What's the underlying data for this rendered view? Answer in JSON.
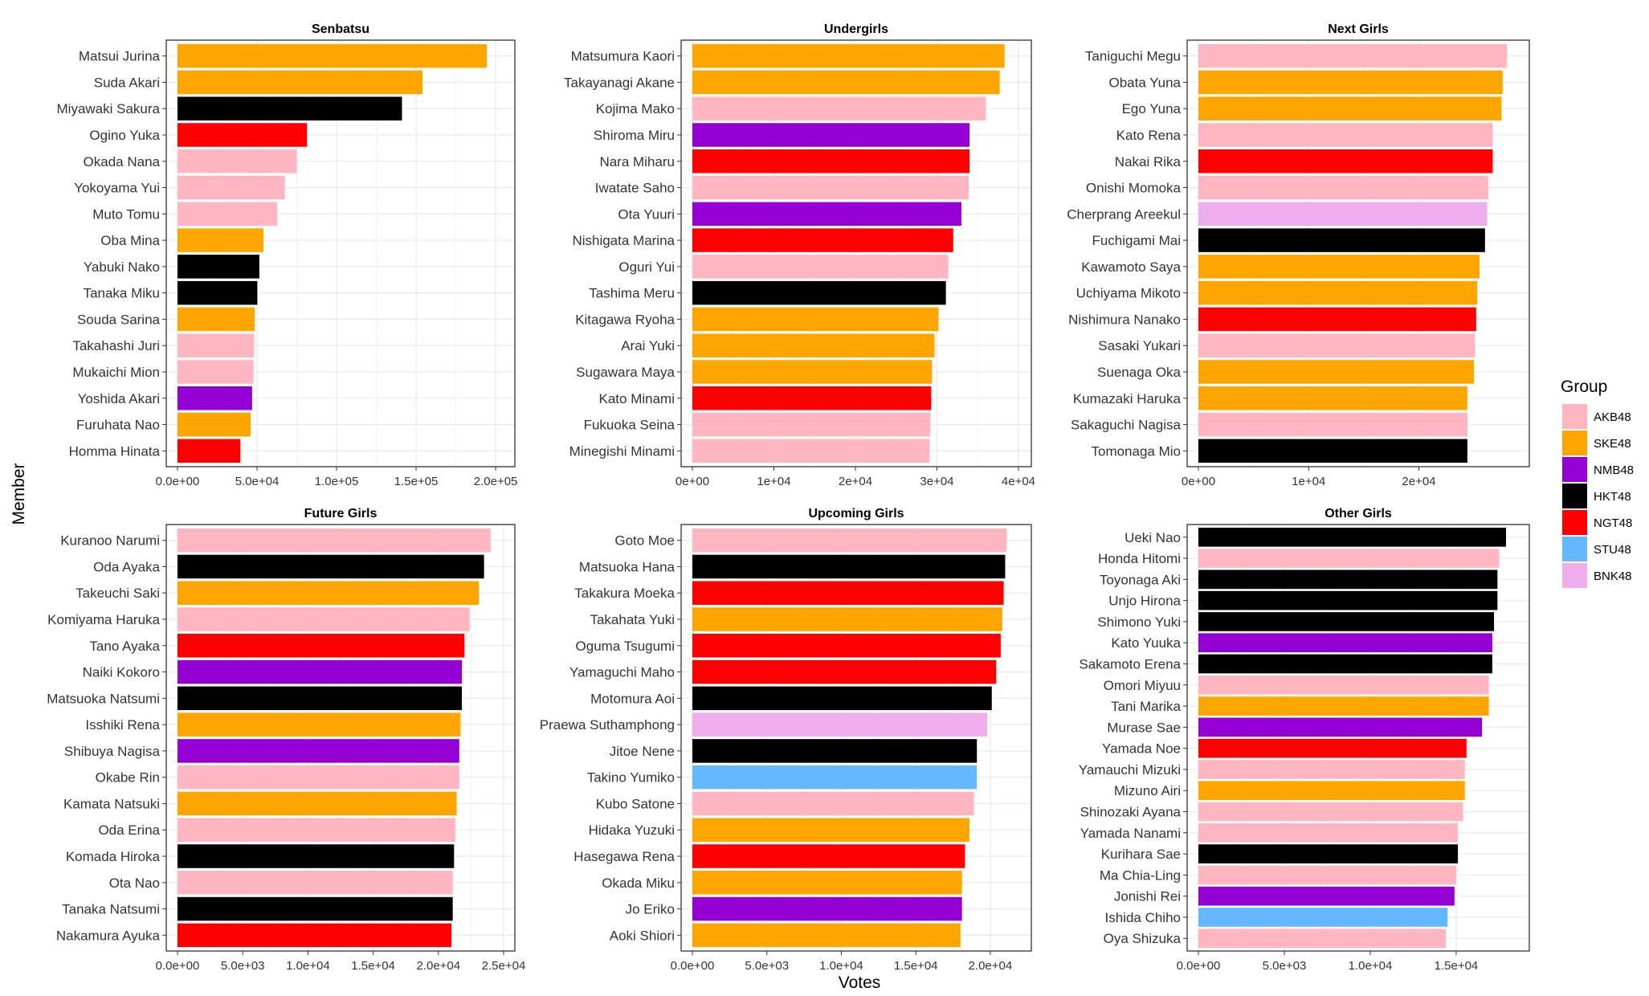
{
  "chart_data": {
    "type": "bar",
    "orientation": "horizontal",
    "xlabel": "Votes",
    "ylabel": "Member",
    "legend": {
      "title": "Group",
      "position": "right",
      "entries": [
        {
          "name": "AKB48",
          "color": "#FFB6C1"
        },
        {
          "name": "SKE48",
          "color": "#FFA500"
        },
        {
          "name": "NMB48",
          "color": "#9400D3"
        },
        {
          "name": "HKT48",
          "color": "#000000"
        },
        {
          "name": "NGT48",
          "color": "#FF0000"
        },
        {
          "name": "STU48",
          "color": "#63B8FF"
        },
        {
          "name": "BNK48",
          "color": "#EEAEEE"
        }
      ]
    },
    "panels": [
      {
        "title": "Senbatsu",
        "xlim": [
          0,
          205000
        ],
        "ticks": [
          0,
          50000,
          100000,
          150000,
          200000
        ],
        "tick_labels": [
          "0.0e+00",
          "5.0e+04",
          "1.0e+05",
          "1.5e+05",
          "2.0e+05"
        ],
        "bars": [
          {
            "member": "Matsui Jurina",
            "group": "SKE48",
            "votes": 194453
          },
          {
            "member": "Suda Akari",
            "group": "SKE48",
            "votes": 154011
          },
          {
            "member": "Miyawaki Sakura",
            "group": "HKT48",
            "votes": 141106
          },
          {
            "member": "Ogino Yuka",
            "group": "NGT48",
            "votes": 81388
          },
          {
            "member": "Okada Nana",
            "group": "AKB48",
            "votes": 75012
          },
          {
            "member": "Yokoyama Yui",
            "group": "AKB48",
            "votes": 67458
          },
          {
            "member": "Muto Tomu",
            "group": "AKB48",
            "votes": 62664
          },
          {
            "member": "Oba Mina",
            "group": "SKE48",
            "votes": 54000
          },
          {
            "member": "Yabuki Nako",
            "group": "HKT48",
            "votes": 51450
          },
          {
            "member": "Tanaka Miku",
            "group": "HKT48",
            "votes": 50174
          },
          {
            "member": "Souda Sarina",
            "group": "SKE48",
            "votes": 48500
          },
          {
            "member": "Takahashi Juri",
            "group": "AKB48",
            "votes": 48200
          },
          {
            "member": "Mukaichi Mion",
            "group": "AKB48",
            "votes": 47800
          },
          {
            "member": "Yoshida Akari",
            "group": "NMB48",
            "votes": 46900
          },
          {
            "member": "Furuhata Nao",
            "group": "SKE48",
            "votes": 46000
          },
          {
            "member": "Homma Hinata",
            "group": "NGT48",
            "votes": 39500
          }
        ]
      },
      {
        "title": "Undergirls",
        "xlim": [
          0,
          40200
        ],
        "ticks": [
          0,
          10000,
          20000,
          30000,
          40000
        ],
        "tick_labels": [
          "0e+00",
          "1e+04",
          "2e+04",
          "3e+04",
          "4e+04"
        ],
        "bars": [
          {
            "member": "Matsumura Kaori",
            "group": "SKE48",
            "votes": 38300
          },
          {
            "member": "Takayanagi Akane",
            "group": "SKE48",
            "votes": 37700
          },
          {
            "member": "Kojima Mako",
            "group": "AKB48",
            "votes": 36000
          },
          {
            "member": "Shiroma Miru",
            "group": "NMB48",
            "votes": 34000
          },
          {
            "member": "Nara Miharu",
            "group": "NGT48",
            "votes": 34000
          },
          {
            "member": "Iwatate Saho",
            "group": "AKB48",
            "votes": 33900
          },
          {
            "member": "Ota Yuuri",
            "group": "NMB48",
            "votes": 33000
          },
          {
            "member": "Nishigata Marina",
            "group": "NGT48",
            "votes": 32000
          },
          {
            "member": "Oguri Yui",
            "group": "AKB48",
            "votes": 31400
          },
          {
            "member": "Tashima Meru",
            "group": "HKT48",
            "votes": 31100
          },
          {
            "member": "Kitagawa Ryoha",
            "group": "SKE48",
            "votes": 30200
          },
          {
            "member": "Arai Yuki",
            "group": "SKE48",
            "votes": 29700
          },
          {
            "member": "Sugawara Maya",
            "group": "SKE48",
            "votes": 29400
          },
          {
            "member": "Kato Minami",
            "group": "NGT48",
            "votes": 29300
          },
          {
            "member": "Fukuoka Seina",
            "group": "AKB48",
            "votes": 29200
          },
          {
            "member": "Minegishi Minami",
            "group": "AKB48",
            "votes": 29100
          }
        ]
      },
      {
        "title": "Next Girls",
        "xlim": [
          0,
          29000
        ],
        "ticks": [
          0,
          10000,
          20000
        ],
        "tick_labels": [
          "0e+00",
          "1e+04",
          "2e+04"
        ],
        "bars": [
          {
            "member": "Taniguchi Megu",
            "group": "AKB48",
            "votes": 28000
          },
          {
            "member": "Obata Yuna",
            "group": "SKE48",
            "votes": 27600
          },
          {
            "member": "Ego Yuna",
            "group": "SKE48",
            "votes": 27500
          },
          {
            "member": "Kato Rena",
            "group": "AKB48",
            "votes": 26700
          },
          {
            "member": "Nakai Rika",
            "group": "NGT48",
            "votes": 26700
          },
          {
            "member": "Onishi Momoka",
            "group": "AKB48",
            "votes": 26300
          },
          {
            "member": "Cherprang Areekul",
            "group": "BNK48",
            "votes": 26200
          },
          {
            "member": "Fuchigami Mai",
            "group": "HKT48",
            "votes": 26000
          },
          {
            "member": "Kawamoto Saya",
            "group": "SKE48",
            "votes": 25500
          },
          {
            "member": "Uchiyama Mikoto",
            "group": "SKE48",
            "votes": 25300
          },
          {
            "member": "Nishimura Nanako",
            "group": "NGT48",
            "votes": 25200
          },
          {
            "member": "Sasaki Yukari",
            "group": "AKB48",
            "votes": 25100
          },
          {
            "member": "Suenaga Oka",
            "group": "SKE48",
            "votes": 25000
          },
          {
            "member": "Kumazaki Haruka",
            "group": "SKE48",
            "votes": 24400
          },
          {
            "member": "Sakaguchi Nagisa",
            "group": "AKB48",
            "votes": 24400
          },
          {
            "member": "Tomonaga Mio",
            "group": "HKT48",
            "votes": 24400
          }
        ]
      },
      {
        "title": "Future Girls",
        "xlim": [
          0,
          25000
        ],
        "ticks": [
          0,
          5000,
          10000,
          15000,
          20000,
          25000
        ],
        "tick_labels": [
          "0.0e+00",
          "5.0e+03",
          "1.0e+04",
          "1.5e+04",
          "2.0e+04",
          "2.5e+04"
        ],
        "bars": [
          {
            "member": "Kuranoo Narumi",
            "group": "AKB48",
            "votes": 24000
          },
          {
            "member": "Oda Ayaka",
            "group": "HKT48",
            "votes": 23500
          },
          {
            "member": "Takeuchi Saki",
            "group": "SKE48",
            "votes": 23100
          },
          {
            "member": "Komiyama Haruka",
            "group": "AKB48",
            "votes": 22400
          },
          {
            "member": "Tano Ayaka",
            "group": "NGT48",
            "votes": 22000
          },
          {
            "member": "Naiki Kokoro",
            "group": "NMB48",
            "votes": 21800
          },
          {
            "member": "Matsuoka Natsumi",
            "group": "HKT48",
            "votes": 21800
          },
          {
            "member": "Isshiki Rena",
            "group": "SKE48",
            "votes": 21700
          },
          {
            "member": "Shibuya Nagisa",
            "group": "NMB48",
            "votes": 21600
          },
          {
            "member": "Okabe Rin",
            "group": "AKB48",
            "votes": 21600
          },
          {
            "member": "Kamata Natsuki",
            "group": "SKE48",
            "votes": 21400
          },
          {
            "member": "Oda Erina",
            "group": "AKB48",
            "votes": 21300
          },
          {
            "member": "Komada Hiroka",
            "group": "HKT48",
            "votes": 21200
          },
          {
            "member": "Ota Nao",
            "group": "AKB48",
            "votes": 21100
          },
          {
            "member": "Tanaka Natsumi",
            "group": "HKT48",
            "votes": 21100
          },
          {
            "member": "Nakamura Ayuka",
            "group": "NGT48",
            "votes": 21000
          }
        ]
      },
      {
        "title": "Upcoming Girls",
        "xlim": [
          0,
          22000
        ],
        "ticks": [
          0,
          5000,
          10000,
          15000,
          20000
        ],
        "tick_labels": [
          "0.0e+00",
          "5.0e+03",
          "1.0e+04",
          "1.5e+04",
          "2.0e+04"
        ],
        "bars": [
          {
            "member": "Goto Moe",
            "group": "AKB48",
            "votes": 21100
          },
          {
            "member": "Matsuoka Hana",
            "group": "HKT48",
            "votes": 21000
          },
          {
            "member": "Takakura Moeka",
            "group": "NGT48",
            "votes": 20900
          },
          {
            "member": "Takahata Yuki",
            "group": "SKE48",
            "votes": 20800
          },
          {
            "member": "Oguma Tsugumi",
            "group": "NGT48",
            "votes": 20700
          },
          {
            "member": "Yamaguchi Maho",
            "group": "NGT48",
            "votes": 20400
          },
          {
            "member": "Motomura Aoi",
            "group": "HKT48",
            "votes": 20100
          },
          {
            "member": "Praewa Suthamphong",
            "group": "BNK48",
            "votes": 19800
          },
          {
            "member": "Jitoe Nene",
            "group": "HKT48",
            "votes": 19100
          },
          {
            "member": "Takino Yumiko",
            "group": "STU48",
            "votes": 19100
          },
          {
            "member": "Kubo Satone",
            "group": "AKB48",
            "votes": 18900
          },
          {
            "member": "Hidaka Yuzuki",
            "group": "SKE48",
            "votes": 18600
          },
          {
            "member": "Hasegawa Rena",
            "group": "NGT48",
            "votes": 18300
          },
          {
            "member": "Okada Miku",
            "group": "SKE48",
            "votes": 18100
          },
          {
            "member": "Jo Eriko",
            "group": "NMB48",
            "votes": 18100
          },
          {
            "member": "Aoki Shiori",
            "group": "SKE48",
            "votes": 18000
          }
        ]
      },
      {
        "title": "Other Girls",
        "xlim": [
          0,
          18600
        ],
        "ticks": [
          0,
          5000,
          10000,
          15000
        ],
        "tick_labels": [
          "0.0e+00",
          "5.0e+03",
          "1.0e+04",
          "1.5e+04"
        ],
        "bars": [
          {
            "member": "Ueki Nao",
            "group": "HKT48",
            "votes": 17900
          },
          {
            "member": "Honda Hitomi",
            "group": "AKB48",
            "votes": 17500
          },
          {
            "member": "Toyonaga Aki",
            "group": "HKT48",
            "votes": 17400
          },
          {
            "member": "Unjo Hirona",
            "group": "HKT48",
            "votes": 17400
          },
          {
            "member": "Shimono Yuki",
            "group": "HKT48",
            "votes": 17200
          },
          {
            "member": "Kato Yuuka",
            "group": "NMB48",
            "votes": 17100
          },
          {
            "member": "Sakamoto Erena",
            "group": "HKT48",
            "votes": 17100
          },
          {
            "member": "Omori Miyuu",
            "group": "AKB48",
            "votes": 16900
          },
          {
            "member": "Tani Marika",
            "group": "SKE48",
            "votes": 16900
          },
          {
            "member": "Murase Sae",
            "group": "NMB48",
            "votes": 16500
          },
          {
            "member": "Yamada Noe",
            "group": "NGT48",
            "votes": 15600
          },
          {
            "member": "Yamauchi Mizuki",
            "group": "AKB48",
            "votes": 15500
          },
          {
            "member": "Mizuno Airi",
            "group": "SKE48",
            "votes": 15500
          },
          {
            "member": "Shinozaki Ayana",
            "group": "AKB48",
            "votes": 15400
          },
          {
            "member": "Yamada Nanami",
            "group": "AKB48",
            "votes": 15100
          },
          {
            "member": "Kurihara Sae",
            "group": "HKT48",
            "votes": 15100
          },
          {
            "member": "Ma Chia-Ling",
            "group": "AKB48",
            "votes": 15000
          },
          {
            "member": "Jonishi Rei",
            "group": "NMB48",
            "votes": 14900
          },
          {
            "member": "Ishida Chiho",
            "group": "STU48",
            "votes": 14500
          },
          {
            "member": "Oya Shizuka",
            "group": "AKB48",
            "votes": 14400
          }
        ]
      }
    ]
  }
}
